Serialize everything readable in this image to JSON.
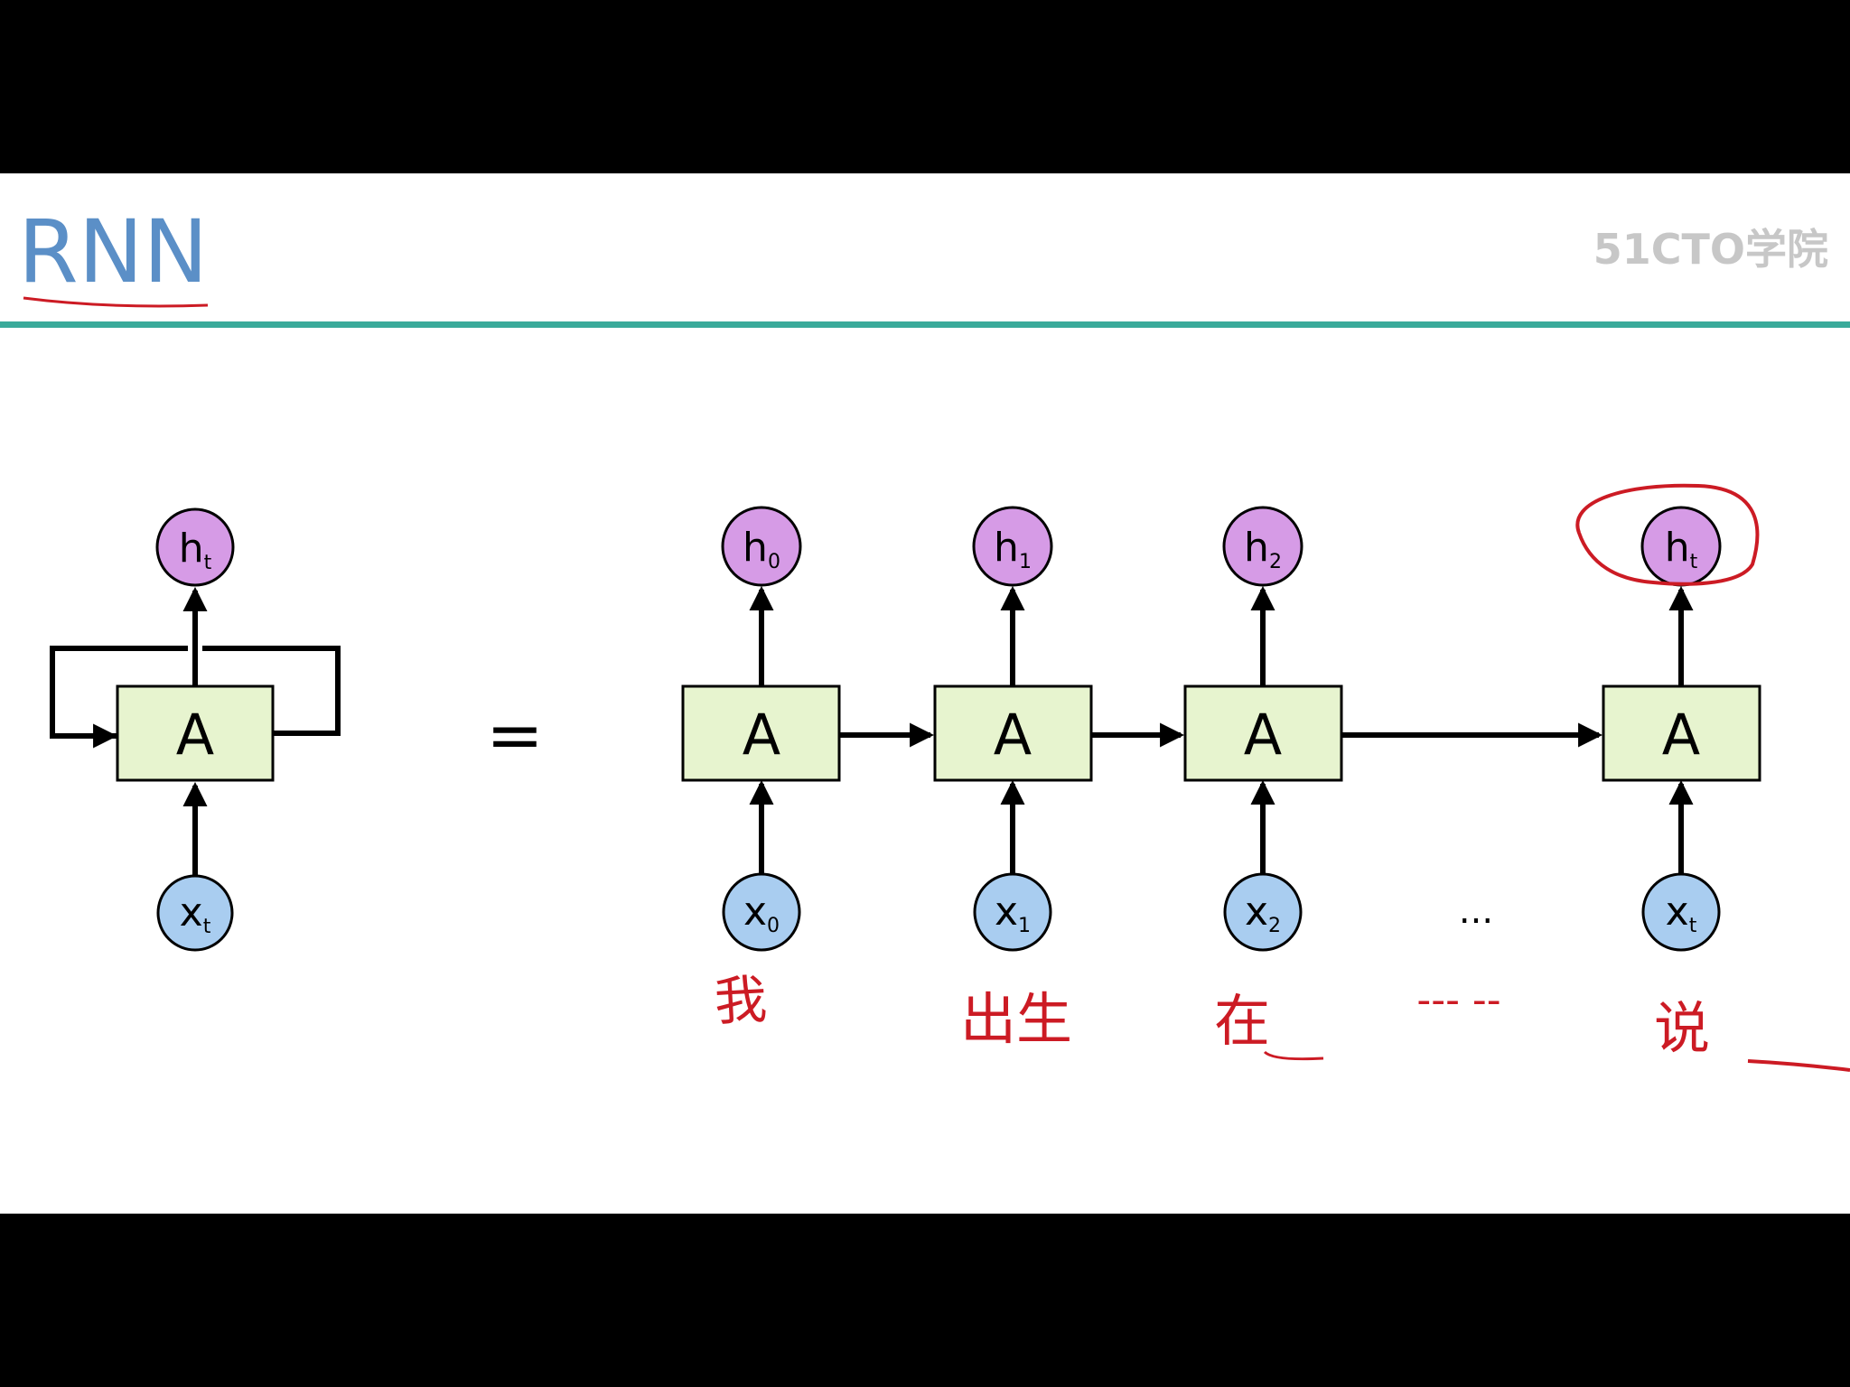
{
  "slide": {
    "title": "RNN",
    "watermark": "51CTO学院",
    "equals": "=",
    "ellipsis": "...",
    "colors": {
      "title": "#5b8fc7",
      "rule": "#3aaa9a",
      "cell_fill": "#e7f4cf",
      "h_fill": "#d69be6",
      "x_fill": "#a9cdf0",
      "ink": "#cc1b24",
      "watermark": "#bdbdbd"
    }
  },
  "rolled": {
    "cell": "A",
    "input": {
      "base": "x",
      "sub": "t"
    },
    "output": {
      "base": "h",
      "sub": "t"
    }
  },
  "unrolled": {
    "steps": [
      {
        "cell": "A",
        "input": {
          "base": "x",
          "sub": "0"
        },
        "output": {
          "base": "h",
          "sub": "0"
        }
      },
      {
        "cell": "A",
        "input": {
          "base": "x",
          "sub": "1"
        },
        "output": {
          "base": "h",
          "sub": "1"
        }
      },
      {
        "cell": "A",
        "input": {
          "base": "x",
          "sub": "2"
        },
        "output": {
          "base": "h",
          "sub": "2"
        }
      },
      {
        "cell": "A",
        "input": {
          "base": "x",
          "sub": "t"
        },
        "output": {
          "base": "h",
          "sub": "t"
        }
      }
    ]
  },
  "annotations": {
    "words": [
      "我",
      "出生",
      "在",
      "说"
    ],
    "dashes": "--- --"
  }
}
